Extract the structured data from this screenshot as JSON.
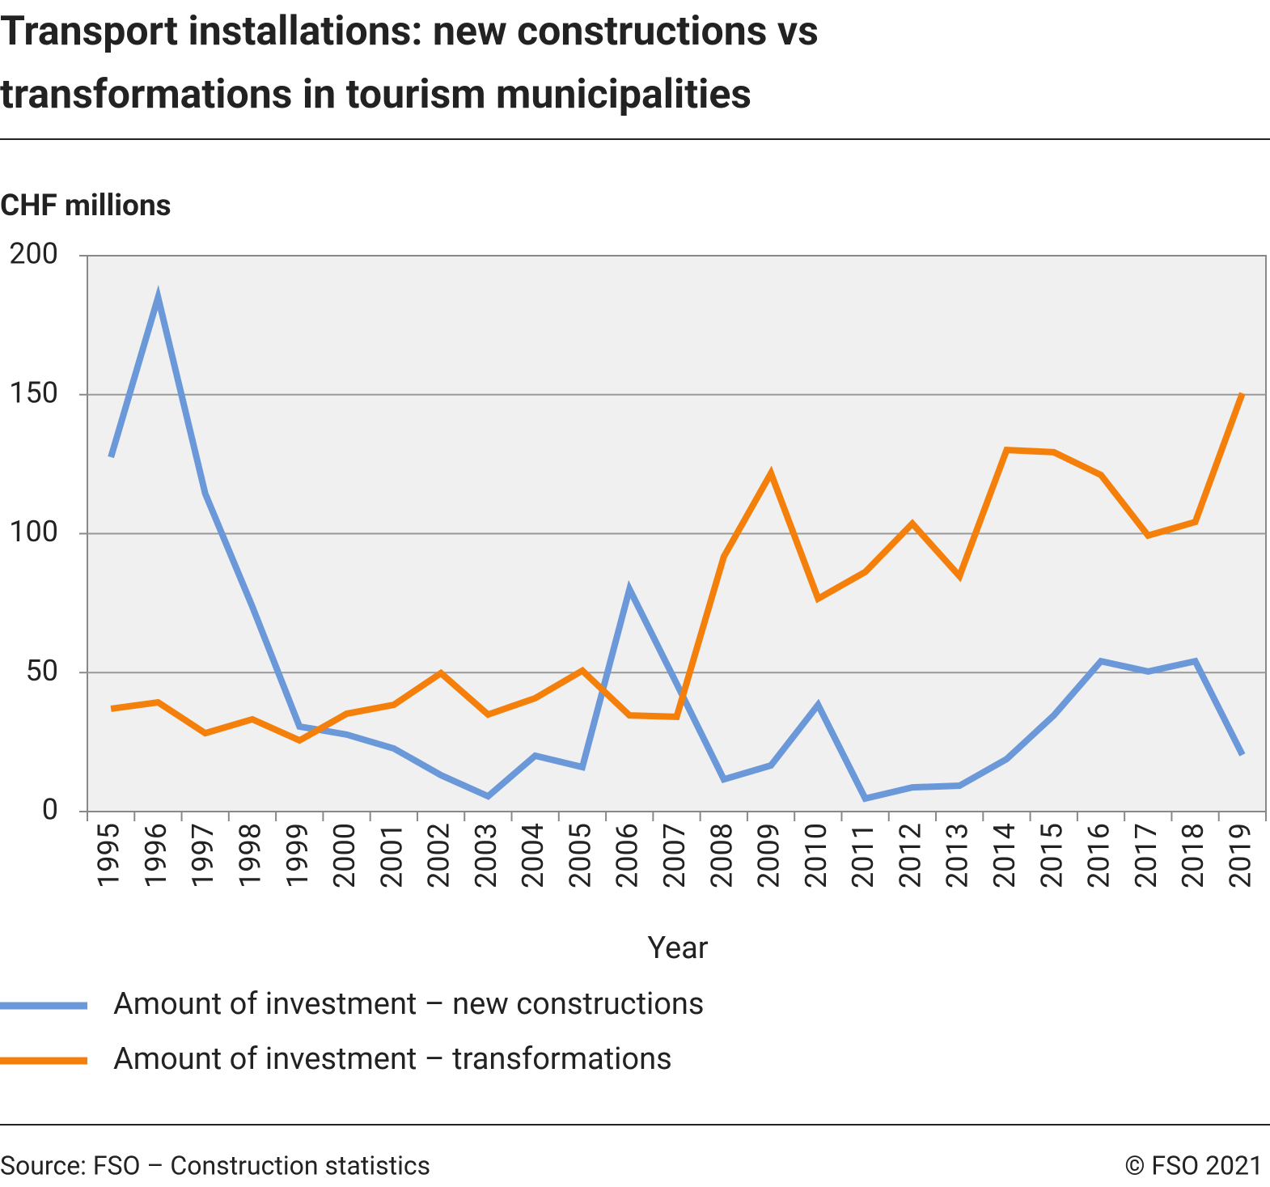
{
  "chart_data": {
    "type": "line",
    "title": "Transport installations: new constructions vs transformations in tourism municipalities",
    "y_label": "CHF millions",
    "x_label": "Year",
    "categories": [
      "1995",
      "1996",
      "1997",
      "1998",
      "1999",
      "2000",
      "2001",
      "2002",
      "2003",
      "2004",
      "2005",
      "2006",
      "2007",
      "2008",
      "2009",
      "2010",
      "2011",
      "2012",
      "2013",
      "2014",
      "2015",
      "2016",
      "2017",
      "2018",
      "2019"
    ],
    "series": [
      {
        "name": "Amount of investment – new constructions",
        "color": "#6a98d8",
        "values": [
          127.5,
          185,
          114.4,
          73.7,
          30.6,
          27.7,
          22.7,
          13.1,
          5.5,
          20.1,
          16,
          80,
          46,
          11.6,
          16.6,
          38.4,
          4.7,
          8.7,
          9.3,
          18.9,
          34.6,
          54.1,
          50.4,
          54.1,
          20.4
        ]
      },
      {
        "name": "Amount of investment – transformations",
        "color": "#f4800b",
        "values": [
          37,
          39.3,
          28.2,
          33.2,
          25.6,
          35.2,
          38.4,
          49.8,
          34.9,
          40.8,
          50.7,
          34.6,
          34.1,
          91.7,
          121.7,
          76.6,
          86.2,
          103.6,
          84.7,
          130.1,
          129.3,
          121.1,
          99.3,
          104.2,
          150.5
        ]
      }
    ],
    "ylim": [
      0,
      200
    ],
    "yticks": [
      0,
      50,
      100,
      150,
      200
    ],
    "grid": true,
    "source": "Source: FSO – Construction statistics",
    "copyright": "© FSO 2021"
  }
}
